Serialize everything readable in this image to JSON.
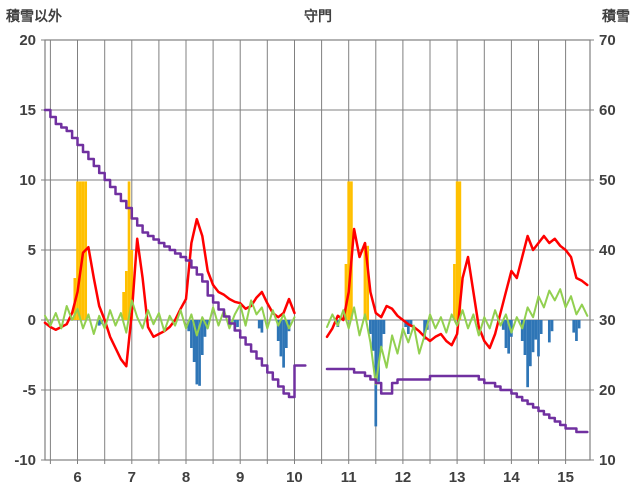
{
  "chart_data": {
    "type": "line",
    "title": "守門",
    "left_axis_label": "積雪以外",
    "right_axis_label": "積雪",
    "left_axis": {
      "min": -10,
      "max": 20,
      "ticks": [
        20,
        15,
        10,
        5,
        0,
        -5,
        -10
      ]
    },
    "right_axis": {
      "min": 10,
      "max": 70,
      "ticks": [
        70,
        60,
        50,
        40,
        30,
        20,
        10
      ]
    },
    "x_axis": {
      "min": 5.4,
      "max": 15.45,
      "labels": [
        "6",
        "7",
        "8",
        "9",
        "10",
        "11",
        "12",
        "13",
        "14",
        "15"
      ],
      "label_positions": [
        6,
        7,
        8,
        9,
        10,
        11,
        12,
        13,
        14,
        15
      ],
      "grid_start": 5.5,
      "grid_step": 0.5,
      "grid_end": 15
    },
    "grid_color": "#808080",
    "background": "#ffffff",
    "series": [
      {
        "name": "orange-bars",
        "type": "bar",
        "axis": "left",
        "color": "#FFC000",
        "bar_width_days": 0.05,
        "points": [
          [
            5.95,
            3
          ],
          [
            6.0,
            9.9
          ],
          [
            6.05,
            9.9
          ],
          [
            6.1,
            9.9
          ],
          [
            6.15,
            9.9
          ],
          [
            6.85,
            2
          ],
          [
            6.9,
            3.5
          ],
          [
            6.95,
            9.9
          ],
          [
            7.0,
            5
          ],
          [
            10.95,
            4
          ],
          [
            11.0,
            9.9
          ],
          [
            11.05,
            9.9
          ],
          [
            11.3,
            5.5
          ],
          [
            11.35,
            5.3
          ],
          [
            12.95,
            4
          ],
          [
            13.0,
            9.9
          ],
          [
            13.05,
            9.9
          ]
        ]
      },
      {
        "name": "blue-bars",
        "type": "bar",
        "axis": "left",
        "color": "#2E75B6",
        "bar_width_days": 0.05,
        "points": [
          [
            6.4,
            -0.4
          ],
          [
            6.45,
            -0.3
          ],
          [
            8.05,
            -0.8
          ],
          [
            8.1,
            -2.0
          ],
          [
            8.15,
            -3.0
          ],
          [
            8.2,
            -4.6
          ],
          [
            8.25,
            -4.7
          ],
          [
            8.3,
            -2.5
          ],
          [
            8.35,
            -1.2
          ],
          [
            8.4,
            -0.5
          ],
          [
            8.9,
            -0.8
          ],
          [
            8.95,
            -0.5
          ],
          [
            9.35,
            -0.6
          ],
          [
            9.4,
            -0.9
          ],
          [
            9.7,
            -1.5
          ],
          [
            9.75,
            -2.6
          ],
          [
            9.8,
            -3.4
          ],
          [
            9.85,
            -2.0
          ],
          [
            9.9,
            -0.8
          ],
          [
            10.8,
            -0.5
          ],
          [
            11.4,
            -1.0
          ],
          [
            11.45,
            -2.2
          ],
          [
            11.5,
            -7.6
          ],
          [
            11.55,
            -4.4
          ],
          [
            11.6,
            -2.0
          ],
          [
            11.65,
            -1.0
          ],
          [
            12.05,
            -0.5
          ],
          [
            12.1,
            -1.0
          ],
          [
            12.15,
            -0.5
          ],
          [
            12.4,
            -1.4
          ],
          [
            12.45,
            -0.7
          ],
          [
            13.85,
            -0.7
          ],
          [
            13.9,
            -2.0
          ],
          [
            13.95,
            -2.4
          ],
          [
            14.0,
            -1.2
          ],
          [
            14.2,
            -1.5
          ],
          [
            14.25,
            -2.5
          ],
          [
            14.3,
            -4.8
          ],
          [
            14.35,
            -3.3
          ],
          [
            14.4,
            -2.3
          ],
          [
            14.45,
            -1.4
          ],
          [
            14.5,
            -2.6
          ],
          [
            14.55,
            -1.0
          ],
          [
            14.7,
            -1.6
          ],
          [
            14.75,
            -0.8
          ],
          [
            15.15,
            -0.9
          ],
          [
            15.2,
            -1.5
          ],
          [
            15.25,
            -0.6
          ]
        ]
      },
      {
        "name": "red-line",
        "type": "line",
        "axis": "left",
        "color": "#FF0000",
        "width": 2.5,
        "x_start": 5.4,
        "x_step": 0.1,
        "values": [
          -0.2,
          -0.5,
          -0.7,
          -0.5,
          -0.3,
          0.5,
          2.0,
          4.8,
          5.2,
          3.0,
          1.0,
          0.0,
          -1.2,
          -2.0,
          -2.8,
          -3.3,
          0.5,
          5.8,
          3.0,
          -0.5,
          -1.2,
          -1.0,
          -0.8,
          -0.5,
          0.0,
          0.8,
          1.5,
          5.5,
          7.2,
          6.0,
          3.5,
          2.5,
          2.0,
          1.8,
          1.5,
          1.3,
          1.2,
          0.8,
          1.0,
          1.6,
          2.0,
          1.2,
          0.5,
          0.2,
          0.5,
          1.5,
          0.5,
          null,
          null,
          null,
          null,
          null,
          -1.2,
          -0.6,
          0.3,
          0.0,
          2.0,
          6.5,
          4.5,
          5.5,
          2.0,
          0.5,
          0.2,
          1.0,
          0.8,
          0.3,
          0.0,
          -0.3,
          -0.5,
          -0.8,
          -1.2,
          -1.5,
          -1.2,
          -1.0,
          -1.5,
          -1.8,
          -1.0,
          3.0,
          4.5,
          2.0,
          -0.5,
          -1.5,
          -2.0,
          -1.0,
          0.5,
          2.0,
          3.5,
          3.0,
          4.5,
          6.0,
          5.0,
          5.5,
          6.0,
          5.5,
          5.8,
          5.3,
          5.0,
          4.5,
          3.0,
          2.8,
          2.5
        ]
      },
      {
        "name": "green-line",
        "type": "line",
        "axis": "left",
        "color": "#92D050",
        "width": 2,
        "x_start": 5.4,
        "x_step": 0.1,
        "values": [
          0.3,
          -0.4,
          0.5,
          -0.6,
          1.0,
          0.0,
          0.8,
          -0.6,
          0.4,
          -1.0,
          0.3,
          -0.6,
          0.7,
          -0.4,
          0.5,
          -0.9,
          1.4,
          0.2,
          -0.6,
          0.7,
          -0.3,
          0.5,
          -0.8,
          0.3,
          -0.4,
          0.7,
          -0.6,
          0.4,
          -1.1,
          0.2,
          -0.6,
          0.9,
          -0.4,
          0.7,
          -0.6,
          0.4,
          1.1,
          -0.4,
          1.4,
          0.4,
          0.9,
          -0.6,
          0.7,
          -0.4,
          0.4,
          -0.6,
          0.2,
          null,
          null,
          null,
          null,
          null,
          -0.5,
          0.4,
          -0.4,
          0.7,
          -0.6,
          0.9,
          -1.1,
          0.4,
          -1.6,
          -4.6,
          -1.9,
          -3.4,
          -1.1,
          -2.4,
          -0.6,
          -1.6,
          -0.4,
          -2.4,
          -1.1,
          0.4,
          -0.6,
          0.2,
          -0.9,
          0.4,
          -0.4,
          0.7,
          -0.6,
          0.4,
          -1.1,
          0.2,
          -0.6,
          0.7,
          -0.4,
          0.4,
          -0.9,
          0.2,
          -0.6,
          0.9,
          0.2,
          1.7,
          0.9,
          2.1,
          1.4,
          2.2,
          0.9,
          1.7,
          0.4,
          1.1,
          0.3
        ]
      },
      {
        "name": "purple-step-line",
        "type": "line",
        "axis": "right",
        "color": "#7030A0",
        "width": 2.5,
        "step": true,
        "x_start": 5.4,
        "x_step": 0.1,
        "values": [
          60,
          59,
          58,
          57.5,
          57,
          56,
          55,
          54,
          53,
          52,
          51,
          50,
          49,
          48,
          47,
          46,
          44.5,
          43.5,
          42.5,
          42,
          41.5,
          41,
          40.5,
          40,
          39.5,
          39,
          38.5,
          37.5,
          36.5,
          35.5,
          33.5,
          32.5,
          31.5,
          30.5,
          29.5,
          28.5,
          27.5,
          26.5,
          25.5,
          24.5,
          23.5,
          22.5,
          21.5,
          20.5,
          19.5,
          19,
          23.5,
          23.5,
          23.5,
          null,
          null,
          null,
          23,
          23,
          23,
          23,
          23,
          22.5,
          22.5,
          22,
          21.5,
          21,
          19.5,
          19.5,
          21,
          21.5,
          21.5,
          21.5,
          21.5,
          21.5,
          21.5,
          22,
          22,
          22,
          22,
          22,
          22,
          22,
          22,
          22,
          21.5,
          21,
          21,
          20.5,
          20,
          20,
          19.5,
          19,
          18.5,
          18,
          17.5,
          17,
          16.5,
          16,
          15.5,
          15,
          14.5,
          14.5,
          14,
          14,
          14
        ]
      }
    ]
  }
}
